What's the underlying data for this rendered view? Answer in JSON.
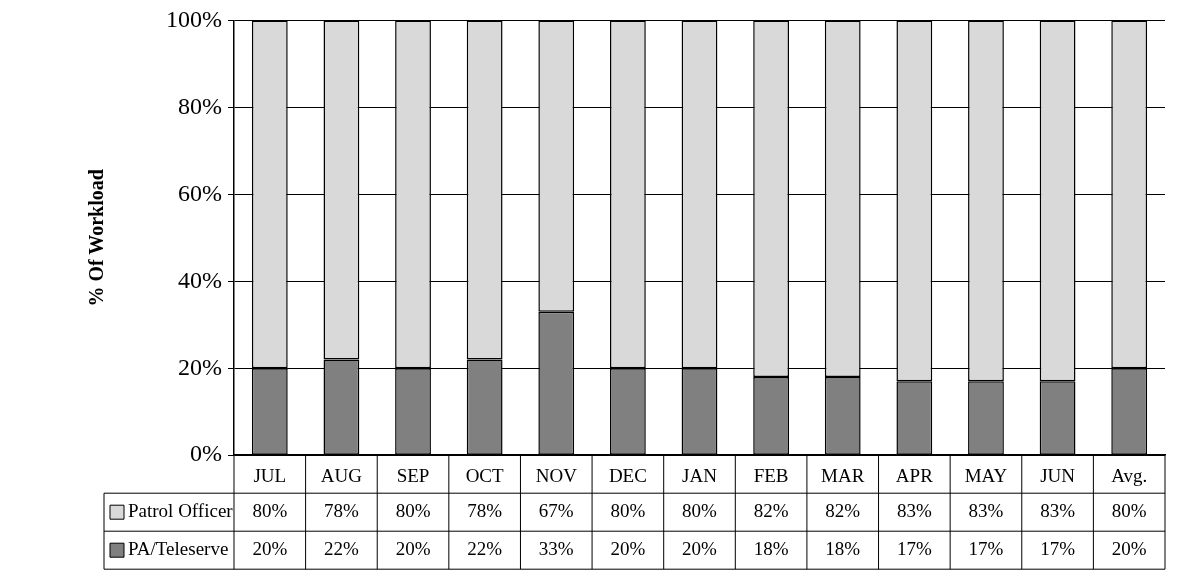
{
  "chart_data": {
    "type": "bar",
    "stacked": true,
    "ylabel": "% Of Workload",
    "categories": [
      "JUL",
      "AUG",
      "SEP",
      "OCT",
      "NOV",
      "DEC",
      "JAN",
      "FEB",
      "MAR",
      "APR",
      "MAY",
      "JUN",
      "Avg."
    ],
    "series": [
      {
        "name": "PA/Teleserve",
        "color": "#808080",
        "values": [
          20,
          22,
          20,
          22,
          33,
          20,
          20,
          18,
          18,
          17,
          17,
          17,
          20
        ],
        "value_labels": [
          "20%",
          "22%",
          "20%",
          "22%",
          "33%",
          "20%",
          "20%",
          "18%",
          "18%",
          "17%",
          "17%",
          "17%",
          "20%"
        ]
      },
      {
        "name": "Patrol Officer",
        "color": "#d9d9d9",
        "values": [
          80,
          78,
          80,
          78,
          67,
          80,
          80,
          82,
          82,
          83,
          83,
          83,
          80
        ],
        "value_labels": [
          "80%",
          "78%",
          "80%",
          "78%",
          "67%",
          "80%",
          "80%",
          "82%",
          "82%",
          "83%",
          "83%",
          "83%",
          "80%"
        ]
      }
    ],
    "ylim": [
      0,
      100
    ],
    "yticks": [
      {
        "value": 0,
        "label": "0%"
      },
      {
        "value": 20,
        "label": "20%"
      },
      {
        "value": 40,
        "label": "40%"
      },
      {
        "value": 60,
        "label": "60%"
      },
      {
        "value": 80,
        "label": "80%"
      },
      {
        "value": 100,
        "label": "100%"
      }
    ],
    "grid": "y",
    "legend": "bottom"
  }
}
